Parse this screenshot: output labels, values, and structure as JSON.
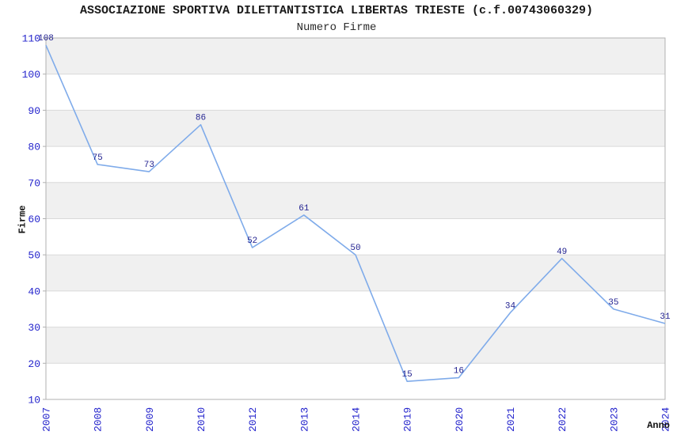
{
  "chart_data": {
    "type": "line",
    "title": "ASSOCIAZIONE SPORTIVA DILETTANTISTICA LIBERTAS TRIESTE (c.f.00743060329)",
    "subtitle": "Numero Firme",
    "xlabel": "Anno",
    "ylabel": "Firme",
    "categories": [
      "2007",
      "2008",
      "2009",
      "2010",
      "2012",
      "2013",
      "2014",
      "2019",
      "2020",
      "2021",
      "2022",
      "2023",
      "2024"
    ],
    "series": [
      {
        "name": "Numero Firme",
        "values": [
          108,
          75,
          73,
          86,
          52,
          61,
          50,
          15,
          16,
          34,
          49,
          35,
          31
        ]
      }
    ],
    "ylim": [
      10,
      110
    ],
    "ytick_step": 10,
    "yticks": [
      10,
      20,
      30,
      40,
      50,
      60,
      70,
      80,
      90,
      100,
      110
    ],
    "grid": "horizontal-bands-alternating-gray",
    "legend": "none",
    "x_tick_rotation_degrees": -90,
    "data_labels_visible": true,
    "colors": {
      "line": "#7fabea",
      "tick_label": "#2323cc",
      "data_label": "#1f1f8f",
      "band_gray": "#f0f0f0",
      "band_white": "#ffffff",
      "gridline": "#d9d9d9",
      "border": "#b0b0b0",
      "title": "#1a1a1a",
      "axis_title": "#111111",
      "background": "#ffffff"
    }
  }
}
